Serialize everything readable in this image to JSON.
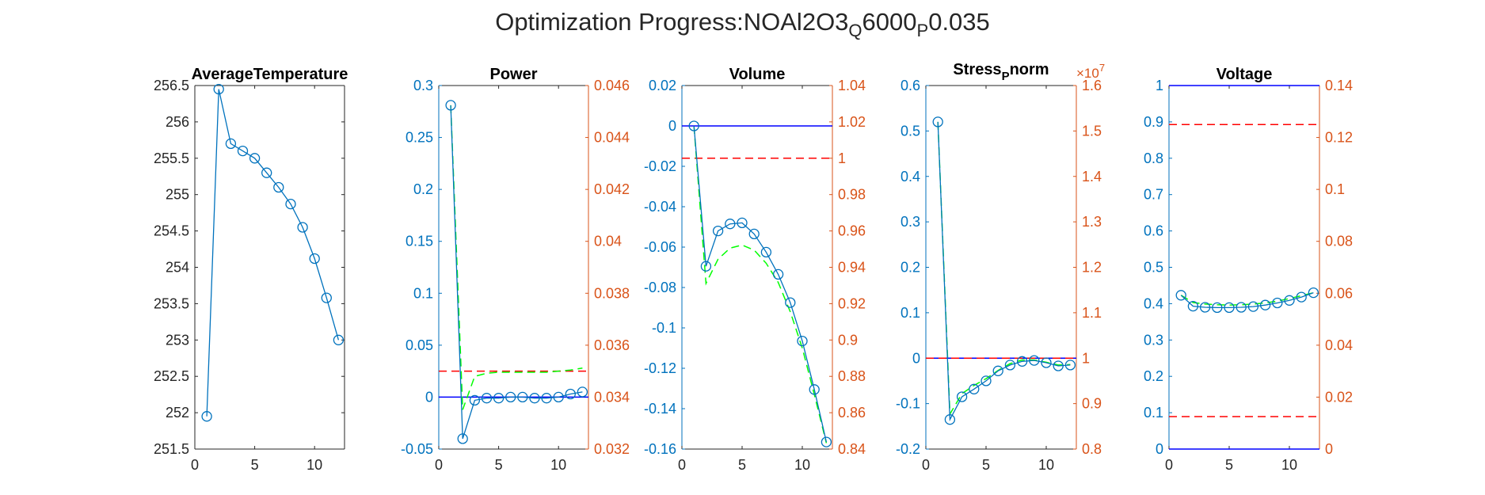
{
  "figure": {
    "title_parts": [
      "Optimization Progress:NOAl2O3",
      "Q",
      "6000",
      "P",
      "0.035"
    ]
  },
  "colors": {
    "left_axis": "#0072BD",
    "right_axis": "#D95319",
    "default_axis": "#262626",
    "series_main": "#0072BD",
    "series_limit_solid": "#0000FF",
    "series_limit_dashed": "#FF0000",
    "series_approx": "#00FF00"
  },
  "chart_data": [
    {
      "type": "line",
      "title": "AverageTemperature",
      "x": [
        1,
        2,
        3,
        4,
        5,
        6,
        7,
        8,
        9,
        10,
        11,
        12
      ],
      "xlim": [
        0,
        12.5
      ],
      "xticks": [
        "0",
        "5",
        "10"
      ],
      "left_axis": {
        "ylim": [
          251.5,
          256.5
        ],
        "ticks": [
          "251.5",
          "252",
          "252.5",
          "253",
          "253.5",
          "254",
          "254.5",
          "255",
          "255.5",
          "256",
          "256.5"
        ],
        "colored": false
      },
      "series": [
        {
          "values": [
            251.95,
            256.45,
            255.7,
            255.6,
            255.5,
            255.3,
            255.1,
            254.87,
            254.55,
            254.12,
            253.58,
            253.0
          ],
          "style": "line-circle",
          "axis": "left"
        }
      ]
    },
    {
      "type": "line",
      "title": "Power",
      "x": [
        1,
        2,
        3,
        4,
        5,
        6,
        7,
        8,
        9,
        10,
        11,
        12
      ],
      "xlim": [
        0,
        12.5
      ],
      "xticks": [
        "0",
        "5",
        "10"
      ],
      "left_axis": {
        "ylim": [
          -0.05,
          0.3
        ],
        "ticks": [
          "-0.05",
          "0",
          "0.05",
          "0.1",
          "0.15",
          "0.2",
          "0.25",
          "0.3"
        ],
        "colored": true
      },
      "right_axis": {
        "ylim": [
          0.032,
          0.046
        ],
        "ticks": [
          "0.032",
          "0.034",
          "0.036",
          "0.038",
          "0.04",
          "0.042",
          "0.044",
          "0.046"
        ]
      },
      "series": [
        {
          "values": [
            0.281,
            -0.04,
            -0.003,
            -0.001,
            -0.001,
            0.0,
            0.0,
            -0.001,
            -0.001,
            0.0,
            0.003,
            0.005
          ],
          "style": "line-circle",
          "axis": "left"
        },
        {
          "values": [
            0.281,
            -0.012,
            0.02,
            0.023,
            0.024,
            0.024,
            0.024,
            0.024,
            0.024,
            0.025,
            0.026,
            0.028
          ],
          "style": "dashed-green",
          "axis": "left"
        },
        {
          "values": [
            0.035,
            0.035
          ],
          "x": [
            0,
            12.5
          ],
          "style": "dashed-red",
          "axis": "right"
        },
        {
          "values": [
            0,
            0
          ],
          "x": [
            0,
            12.5
          ],
          "style": "solid-blue",
          "axis": "left"
        }
      ]
    },
    {
      "type": "line",
      "title": "Volume",
      "x": [
        1,
        2,
        3,
        4,
        5,
        6,
        7,
        8,
        9,
        10,
        11,
        12
      ],
      "xlim": [
        0,
        12.5
      ],
      "xticks": [
        "0",
        "5",
        "10"
      ],
      "left_axis": {
        "ylim": [
          -0.16,
          0.02
        ],
        "ticks": [
          "-0.16",
          "-0.14",
          "-0.12",
          "-0.1",
          "-0.08",
          "-0.06",
          "-0.04",
          "-0.02",
          "0",
          "0.02"
        ],
        "colored": true
      },
      "right_axis": {
        "ylim": [
          0.84,
          1.04
        ],
        "ticks": [
          "0.84",
          "0.86",
          "0.88",
          "0.9",
          "0.92",
          "0.94",
          "0.96",
          "0.98",
          "1",
          "1.02",
          "1.04"
        ]
      },
      "series": [
        {
          "values": [
            0.0,
            -0.0695,
            -0.052,
            -0.0485,
            -0.048,
            -0.0535,
            -0.0625,
            -0.0735,
            -0.0875,
            -0.1065,
            -0.1305,
            -0.1565
          ],
          "style": "line-circle",
          "axis": "left"
        },
        {
          "values": [
            0.0,
            -0.078,
            -0.066,
            -0.0605,
            -0.059,
            -0.0615,
            -0.068,
            -0.0775,
            -0.092,
            -0.11,
            -0.133,
            -0.157
          ],
          "style": "dashed-green",
          "axis": "left"
        },
        {
          "values": [
            1.0,
            1.0
          ],
          "x": [
            0,
            12.5
          ],
          "style": "dashed-red",
          "axis": "right"
        },
        {
          "values": [
            0,
            0
          ],
          "x": [
            0,
            12.5
          ],
          "style": "solid-blue",
          "axis": "left"
        }
      ]
    },
    {
      "type": "line",
      "title_parts": [
        "Stress",
        "P",
        "norm"
      ],
      "x": [
        1,
        2,
        3,
        4,
        5,
        6,
        7,
        8,
        9,
        10,
        11,
        12
      ],
      "xlim": [
        0,
        12.5
      ],
      "xticks": [
        "0",
        "5",
        "10"
      ],
      "left_axis": {
        "ylim": [
          -0.2,
          0.6
        ],
        "ticks": [
          "-0.2",
          "-0.1",
          "0",
          "0.1",
          "0.2",
          "0.3",
          "0.4",
          "0.5",
          "0.6"
        ],
        "colored": true
      },
      "right_axis": {
        "ylim": [
          0.8,
          1.6
        ],
        "ticks": [
          "0.8",
          "0.9",
          "1",
          "1.1",
          "1.2",
          "1.3",
          "1.4",
          "1.5",
          "1.6"
        ],
        "exponent_base": "×10",
        "exponent_power": "7"
      },
      "series": [
        {
          "values": [
            0.52,
            -0.135,
            -0.085,
            -0.068,
            -0.05,
            -0.028,
            -0.015,
            -0.007,
            -0.005,
            -0.01,
            -0.017,
            -0.015
          ],
          "style": "line-circle",
          "axis": "left"
        },
        {
          "values": [
            0.52,
            -0.123,
            -0.078,
            -0.06,
            -0.045,
            -0.027,
            -0.012,
            -0.004,
            -0.004,
            -0.009,
            -0.015,
            -0.014
          ],
          "style": "dashed-green",
          "axis": "left"
        },
        {
          "values": [
            1.0,
            1.0
          ],
          "x": [
            0,
            12.5
          ],
          "style": "dashed-red",
          "axis": "right"
        },
        {
          "values": [
            0,
            0
          ],
          "x": [
            0,
            12.5
          ],
          "style": "solid-blue",
          "axis": "left"
        }
      ]
    },
    {
      "type": "line",
      "title": "Voltage",
      "x": [
        1,
        2,
        3,
        4,
        5,
        6,
        7,
        8,
        9,
        10,
        11,
        12
      ],
      "xlim": [
        0,
        12.5
      ],
      "xticks": [
        "0",
        "5",
        "10"
      ],
      "left_axis": {
        "ylim": [
          0,
          1
        ],
        "ticks": [
          "0",
          "0.1",
          "0.2",
          "0.3",
          "0.4",
          "0.5",
          "0.6",
          "0.7",
          "0.8",
          "0.9",
          "1"
        ],
        "colored": true
      },
      "right_axis": {
        "ylim": [
          0,
          0.14
        ],
        "ticks": [
          "0",
          "0.02",
          "0.04",
          "0.06",
          "0.08",
          "0.1",
          "0.12",
          "0.14"
        ]
      },
      "series": [
        {
          "values": [
            0.423,
            0.393,
            0.39,
            0.389,
            0.389,
            0.39,
            0.392,
            0.396,
            0.402,
            0.409,
            0.418,
            0.43
          ],
          "style": "line-circle",
          "axis": "left"
        },
        {
          "values": [
            0.423,
            0.403,
            0.399,
            0.397,
            0.396,
            0.397,
            0.399,
            0.402,
            0.407,
            0.414,
            0.422,
            0.43
          ],
          "style": "dashed-green",
          "axis": "left"
        },
        {
          "values": [
            0.125,
            0.125
          ],
          "x": [
            0,
            12.5
          ],
          "style": "dashed-red",
          "axis": "right"
        },
        {
          "values": [
            0.0125,
            0.0125
          ],
          "x": [
            0,
            12.5
          ],
          "style": "dashed-red",
          "axis": "right"
        },
        {
          "values": [
            1,
            1
          ],
          "x": [
            0,
            12.5
          ],
          "style": "solid-blue",
          "axis": "left"
        },
        {
          "values": [
            0,
            0
          ],
          "x": [
            0,
            12.5
          ],
          "style": "solid-blue",
          "axis": "left"
        }
      ]
    }
  ]
}
